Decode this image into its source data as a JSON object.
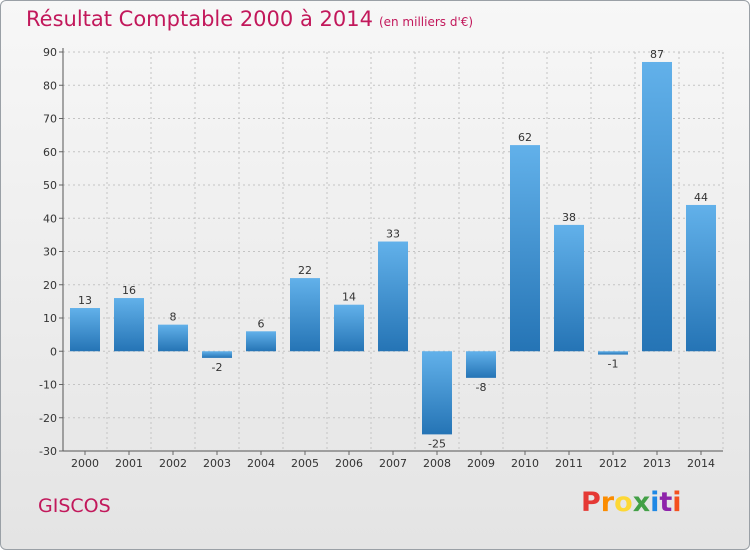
{
  "header": {
    "title": "Résultat Comptable 2000 à 2014",
    "subtitle": "(en milliers d'€)"
  },
  "footer": {
    "place": "GISCOS",
    "brand": [
      "P",
      "r",
      "o",
      "x",
      "i",
      "t",
      "i"
    ]
  },
  "colors": {
    "title": "#c2185b",
    "bar_top": "#62b1ea",
    "bar_bottom": "#2574b5",
    "brand": [
      "#e53935",
      "#fb8c00",
      "#fdd835",
      "#43a047",
      "#1e88e5",
      "#8e24aa",
      "#f4511e"
    ]
  },
  "chart_data": {
    "type": "bar",
    "title": "Résultat Comptable 2000 à 2014",
    "subtitle": "(en milliers d'€)",
    "categories": [
      "2000",
      "2001",
      "2002",
      "2003",
      "2004",
      "2005",
      "2006",
      "2007",
      "2008",
      "2009",
      "2010",
      "2011",
      "2012",
      "2013",
      "2014"
    ],
    "values": [
      13,
      16,
      8,
      -2,
      6,
      22,
      14,
      33,
      -25,
      -8,
      62,
      38,
      -1,
      87,
      44
    ],
    "ylim": [
      -30,
      90
    ],
    "yticks": [
      -30,
      -20,
      -10,
      0,
      10,
      20,
      30,
      40,
      50,
      60,
      70,
      80,
      90
    ],
    "grid": true,
    "xlabel": "",
    "ylabel": ""
  }
}
